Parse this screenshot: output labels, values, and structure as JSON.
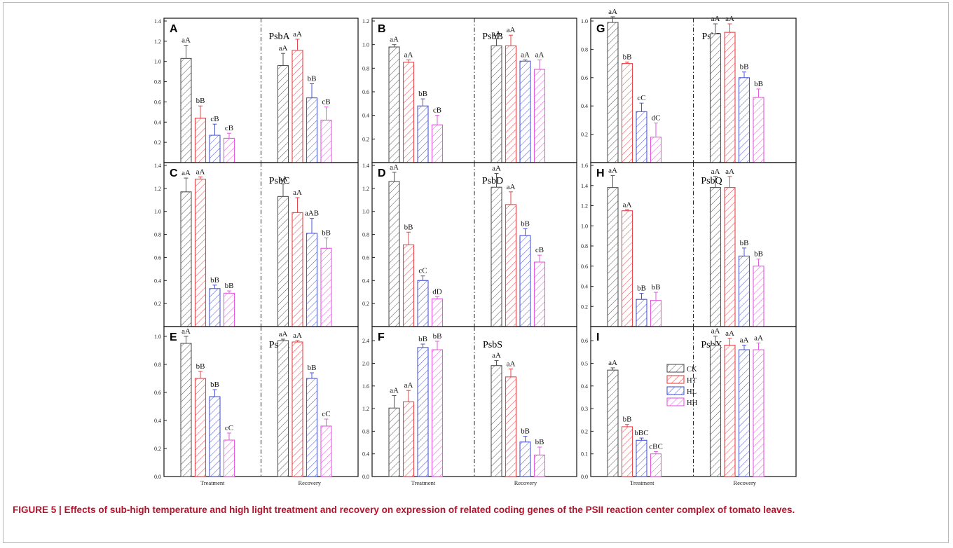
{
  "caption": {
    "label": "FIGURE 5 |",
    "text": "Effects of sub-high temperature and high light treatment and recovery on expression of related coding genes of the PSII reaction center complex of tomato leaves."
  },
  "colors": {
    "CK": "#555555",
    "HT": "#e8454a",
    "HL": "#4a57d6",
    "HH": "#e55ae0"
  },
  "legend": [
    "CK",
    "HT",
    "HL",
    "HH"
  ],
  "chart_data": [
    {
      "type": "bar",
      "panel": "A",
      "title": "PsbA",
      "categories": [
        "Treatment",
        "Recovery"
      ],
      "ylim": [
        0,
        1.4
      ],
      "yticks": [
        "0.2",
        "0.4",
        "0.6",
        "0.8",
        "1.0",
        "1.2",
        "1.4"
      ],
      "series": [
        {
          "name": "CK",
          "values": [
            1.03,
            0.96
          ],
          "errors": [
            0.13,
            0.12
          ],
          "labels": [
            "aA",
            "aA"
          ]
        },
        {
          "name": "HT",
          "values": [
            0.44,
            1.11
          ],
          "errors": [
            0.12,
            0.11
          ],
          "labels": [
            "bB",
            "aA"
          ]
        },
        {
          "name": "HL",
          "values": [
            0.27,
            0.64
          ],
          "errors": [
            0.11,
            0.14
          ],
          "labels": [
            "cB",
            "bB"
          ]
        },
        {
          "name": "HH",
          "values": [
            0.24,
            0.42
          ],
          "errors": [
            0.05,
            0.13
          ],
          "labels": [
            "cB",
            "cB"
          ]
        }
      ]
    },
    {
      "type": "bar",
      "panel": "B",
      "title": "PsbB",
      "categories": [
        "Treatment",
        "Recovery"
      ],
      "ylim": [
        0,
        1.2
      ],
      "yticks": [
        "0.2",
        "0.4",
        "0.6",
        "0.8",
        "1.0",
        "1.2"
      ],
      "series": [
        {
          "name": "CK",
          "values": [
            0.98,
            0.99
          ],
          "errors": [
            0.02,
            0.06
          ],
          "labels": [
            "aA",
            "aA"
          ]
        },
        {
          "name": "HT",
          "values": [
            0.85,
            0.99
          ],
          "errors": [
            0.02,
            0.09
          ],
          "labels": [
            "aA",
            "aA"
          ]
        },
        {
          "name": "HL",
          "values": [
            0.48,
            0.86
          ],
          "errors": [
            0.06,
            0.01
          ],
          "labels": [
            "bB",
            "aA"
          ]
        },
        {
          "name": "HH",
          "values": [
            0.32,
            0.79
          ],
          "errors": [
            0.08,
            0.08
          ],
          "labels": [
            "cB",
            "aA"
          ]
        }
      ]
    },
    {
      "type": "bar",
      "panel": "G",
      "title": "PsbP",
      "categories": [
        "Treatment",
        "Recovery"
      ],
      "ylim": [
        0,
        1.0
      ],
      "yticks": [
        "0.2",
        "0.4",
        "0.6",
        "0.8",
        "1.0"
      ],
      "series": [
        {
          "name": "CK",
          "values": [
            0.99,
            0.91
          ],
          "errors": [
            0.04,
            0.07
          ],
          "labels": [
            "aA",
            "aA"
          ]
        },
        {
          "name": "HT",
          "values": [
            0.7,
            0.92
          ],
          "errors": [
            0.01,
            0.06
          ],
          "labels": [
            "bB",
            "aA"
          ]
        },
        {
          "name": "HL",
          "values": [
            0.36,
            0.6
          ],
          "errors": [
            0.06,
            0.04
          ],
          "labels": [
            "cC",
            "bB"
          ]
        },
        {
          "name": "HH",
          "values": [
            0.18,
            0.46
          ],
          "errors": [
            0.1,
            0.06
          ],
          "labels": [
            "dC",
            "bB"
          ]
        }
      ]
    },
    {
      "type": "bar",
      "panel": "C",
      "title": "PsbC",
      "categories": [
        "Treatment",
        "Recovery"
      ],
      "ylim": [
        0,
        1.4
      ],
      "yticks": [
        "0.2",
        "0.4",
        "0.6",
        "0.8",
        "1.0",
        "1.2",
        "1.4"
      ],
      "series": [
        {
          "name": "CK",
          "values": [
            1.17,
            1.13
          ],
          "errors": [
            0.12,
            0.11
          ],
          "labels": [
            "aA",
            "aA"
          ]
        },
        {
          "name": "HT",
          "values": [
            1.28,
            0.99
          ],
          "errors": [
            0.02,
            0.13
          ],
          "labels": [
            "aA",
            "aA"
          ]
        },
        {
          "name": "HL",
          "values": [
            0.33,
            0.81
          ],
          "errors": [
            0.03,
            0.13
          ],
          "labels": [
            "bB",
            "aAB"
          ]
        },
        {
          "name": "HH",
          "values": [
            0.29,
            0.68
          ],
          "errors": [
            0.02,
            0.09
          ],
          "labels": [
            "bB",
            "bB"
          ]
        }
      ]
    },
    {
      "type": "bar",
      "panel": "D",
      "title": "PsbD",
      "categories": [
        "Treatment",
        "Recovery"
      ],
      "ylim": [
        0,
        1.4
      ],
      "yticks": [
        "0.2",
        "0.4",
        "0.6",
        "0.8",
        "1.0",
        "1.2",
        "1.4"
      ],
      "series": [
        {
          "name": "CK",
          "values": [
            1.26,
            1.21
          ],
          "errors": [
            0.08,
            0.12
          ],
          "labels": [
            "aA",
            "aA"
          ]
        },
        {
          "name": "HT",
          "values": [
            0.71,
            1.06
          ],
          "errors": [
            0.11,
            0.11
          ],
          "labels": [
            "bB",
            "aA"
          ]
        },
        {
          "name": "HL",
          "values": [
            0.4,
            0.79
          ],
          "errors": [
            0.04,
            0.06
          ],
          "labels": [
            "cC",
            "bB"
          ]
        },
        {
          "name": "HH",
          "values": [
            0.24,
            0.56
          ],
          "errors": [
            0.02,
            0.06
          ],
          "labels": [
            "dD",
            "cB"
          ]
        }
      ]
    },
    {
      "type": "bar",
      "panel": "H",
      "title": "PsbQ",
      "categories": [
        "Treatment",
        "Recovery"
      ],
      "ylim": [
        0,
        1.6
      ],
      "yticks": [
        "0.2",
        "0.4",
        "0.6",
        "0.8",
        "1.0",
        "1.2",
        "1.4",
        "1.6"
      ],
      "series": [
        {
          "name": "CK",
          "values": [
            1.38,
            1.38
          ],
          "errors": [
            0.12,
            0.11
          ],
          "labels": [
            "aA",
            "aA"
          ]
        },
        {
          "name": "HT",
          "values": [
            1.15,
            1.38
          ],
          "errors": [
            0.01,
            0.11
          ],
          "labels": [
            "aA",
            "aA"
          ]
        },
        {
          "name": "HL",
          "values": [
            0.27,
            0.7
          ],
          "errors": [
            0.06,
            0.08
          ],
          "labels": [
            "bB",
            "bB"
          ]
        },
        {
          "name": "HH",
          "values": [
            0.26,
            0.6
          ],
          "errors": [
            0.08,
            0.07
          ],
          "labels": [
            "bB",
            "bB"
          ]
        }
      ]
    },
    {
      "type": "bar",
      "panel": "E",
      "title": "PsbR",
      "categories": [
        "Treatment",
        "Recovery"
      ],
      "ylim": [
        0,
        1.05
      ],
      "yticks": [
        "0.0",
        "0.2",
        "0.4",
        "0.6",
        "0.8",
        "1.0"
      ],
      "series": [
        {
          "name": "CK",
          "values": [
            0.95,
            0.97
          ],
          "errors": [
            0.05,
            0.01
          ],
          "labels": [
            "aA",
            "aA"
          ]
        },
        {
          "name": "HT",
          "values": [
            0.7,
            0.96
          ],
          "errors": [
            0.05,
            0.01
          ],
          "labels": [
            "bB",
            "aA"
          ]
        },
        {
          "name": "HL",
          "values": [
            0.57,
            0.7
          ],
          "errors": [
            0.05,
            0.04
          ],
          "labels": [
            "bB",
            "bB"
          ]
        },
        {
          "name": "HH",
          "values": [
            0.26,
            0.36
          ],
          "errors": [
            0.05,
            0.05
          ],
          "labels": [
            "cC",
            "cC"
          ]
        }
      ]
    },
    {
      "type": "bar",
      "panel": "F",
      "title": "PsbS",
      "categories": [
        "Treatment",
        "Recovery"
      ],
      "ylim": [
        0,
        2.6
      ],
      "yticks": [
        "0.0",
        "0.4",
        "0.8",
        "1.2",
        "1.6",
        "2.0",
        "2.4"
      ],
      "series": [
        {
          "name": "CK",
          "values": [
            1.21,
            1.96
          ],
          "errors": [
            0.22,
            0.09
          ],
          "labels": [
            "aA",
            "aA"
          ]
        },
        {
          "name": "HT",
          "values": [
            1.32,
            1.76
          ],
          "errors": [
            0.2,
            0.14
          ],
          "labels": [
            "aA",
            "aA"
          ]
        },
        {
          "name": "HL",
          "values": [
            2.28,
            0.61
          ],
          "errors": [
            0.06,
            0.1
          ],
          "labels": [
            "bB",
            "bB"
          ]
        },
        {
          "name": "HH",
          "values": [
            2.24,
            0.38
          ],
          "errors": [
            0.15,
            0.14
          ],
          "labels": [
            "bB",
            "bB"
          ]
        }
      ]
    },
    {
      "type": "bar",
      "panel": "I",
      "title": "PsbX",
      "categories": [
        "Treatment",
        "Recovery"
      ],
      "ylim": [
        0,
        0.65
      ],
      "yticks": [
        "0.0",
        "0.1",
        "0.2",
        "0.3",
        "0.4",
        "0.5",
        "0.6"
      ],
      "series": [
        {
          "name": "CK",
          "values": [
            0.47,
            0.58
          ],
          "errors": [
            0.01,
            0.04
          ],
          "labels": [
            "aA",
            "aA"
          ]
        },
        {
          "name": "HT",
          "values": [
            0.22,
            0.58
          ],
          "errors": [
            0.01,
            0.03
          ],
          "labels": [
            "bB",
            "aA"
          ]
        },
        {
          "name": "HL",
          "values": [
            0.16,
            0.56
          ],
          "errors": [
            0.01,
            0.02
          ],
          "labels": [
            "bBC",
            "aA"
          ]
        },
        {
          "name": "HH",
          "values": [
            0.1,
            0.56
          ],
          "errors": [
            0.01,
            0.03
          ],
          "labels": [
            "cBC",
            "aA"
          ]
        }
      ]
    }
  ]
}
